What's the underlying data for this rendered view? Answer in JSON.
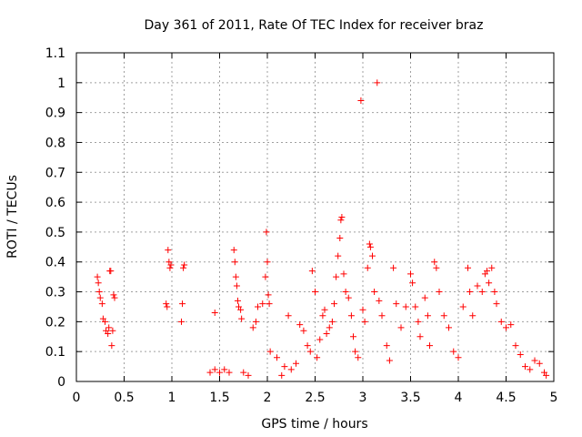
{
  "chart_data": {
    "type": "scatter",
    "title": "Day 361 of 2011, Rate Of TEC Index for receiver braz",
    "xlabel": "GPS time / hours",
    "ylabel": "ROTI / TECUs",
    "xlim": [
      0,
      5
    ],
    "ylim": [
      0,
      1.1
    ],
    "xticks": [
      "0",
      "0.5",
      "1",
      "1.5",
      "2",
      "2.5",
      "3",
      "3.5",
      "4",
      "4.5",
      "5"
    ],
    "yticks": [
      "0",
      "0.1",
      "0.2",
      "0.3",
      "0.4",
      "0.5",
      "0.6",
      "0.7",
      "0.8",
      "0.9",
      "1",
      "1.1"
    ],
    "grid": true,
    "marker": "plus",
    "series": [
      {
        "name": "ROTI",
        "color": "#ff0000",
        "points": [
          [
            0.22,
            0.35
          ],
          [
            0.23,
            0.33
          ],
          [
            0.24,
            0.3
          ],
          [
            0.25,
            0.28
          ],
          [
            0.27,
            0.26
          ],
          [
            0.28,
            0.21
          ],
          [
            0.3,
            0.2
          ],
          [
            0.31,
            0.17
          ],
          [
            0.33,
            0.16
          ],
          [
            0.34,
            0.18
          ],
          [
            0.35,
            0.37
          ],
          [
            0.36,
            0.37
          ],
          [
            0.37,
            0.12
          ],
          [
            0.38,
            0.17
          ],
          [
            0.39,
            0.29
          ],
          [
            0.4,
            0.28
          ],
          [
            0.94,
            0.26
          ],
          [
            0.95,
            0.25
          ],
          [
            0.96,
            0.44
          ],
          [
            0.97,
            0.4
          ],
          [
            0.98,
            0.38
          ],
          [
            0.99,
            0.39
          ],
          [
            1.1,
            0.2
          ],
          [
            1.11,
            0.26
          ],
          [
            1.12,
            0.38
          ],
          [
            1.13,
            0.39
          ],
          [
            1.45,
            0.23
          ],
          [
            1.4,
            0.03
          ],
          [
            1.45,
            0.04
          ],
          [
            1.5,
            0.03
          ],
          [
            1.55,
            0.04
          ],
          [
            1.6,
            0.03
          ],
          [
            1.65,
            0.44
          ],
          [
            1.66,
            0.4
          ],
          [
            1.67,
            0.35
          ],
          [
            1.68,
            0.32
          ],
          [
            1.69,
            0.27
          ],
          [
            1.7,
            0.25
          ],
          [
            1.72,
            0.24
          ],
          [
            1.73,
            0.21
          ],
          [
            1.75,
            0.03
          ],
          [
            1.8,
            0.02
          ],
          [
            1.85,
            0.18
          ],
          [
            1.88,
            0.2
          ],
          [
            1.9,
            0.25
          ],
          [
            1.95,
            0.26
          ],
          [
            1.98,
            0.35
          ],
          [
            1.99,
            0.5
          ],
          [
            2.0,
            0.4
          ],
          [
            2.01,
            0.29
          ],
          [
            2.02,
            0.26
          ],
          [
            2.03,
            0.1
          ],
          [
            2.1,
            0.08
          ],
          [
            2.15,
            0.02
          ],
          [
            2.18,
            0.05
          ],
          [
            2.22,
            0.22
          ],
          [
            2.25,
            0.04
          ],
          [
            2.3,
            0.06
          ],
          [
            2.34,
            0.19
          ],
          [
            2.38,
            0.17
          ],
          [
            2.42,
            0.12
          ],
          [
            2.45,
            0.1
          ],
          [
            2.47,
            0.37
          ],
          [
            2.5,
            0.3
          ],
          [
            2.52,
            0.08
          ],
          [
            2.55,
            0.14
          ],
          [
            2.58,
            0.22
          ],
          [
            2.6,
            0.24
          ],
          [
            2.62,
            0.16
          ],
          [
            2.65,
            0.18
          ],
          [
            2.68,
            0.2
          ],
          [
            2.7,
            0.26
          ],
          [
            2.72,
            0.35
          ],
          [
            2.74,
            0.42
          ],
          [
            2.76,
            0.48
          ],
          [
            2.77,
            0.54
          ],
          [
            2.78,
            0.55
          ],
          [
            2.8,
            0.36
          ],
          [
            2.82,
            0.3
          ],
          [
            2.85,
            0.28
          ],
          [
            2.88,
            0.22
          ],
          [
            2.9,
            0.15
          ],
          [
            2.92,
            0.1
          ],
          [
            2.95,
            0.08
          ],
          [
            2.98,
            0.94
          ],
          [
            3.0,
            0.24
          ],
          [
            3.02,
            0.2
          ],
          [
            3.05,
            0.38
          ],
          [
            3.07,
            0.46
          ],
          [
            3.08,
            0.45
          ],
          [
            3.1,
            0.42
          ],
          [
            3.12,
            0.3
          ],
          [
            3.15,
            1.0
          ],
          [
            3.17,
            0.27
          ],
          [
            3.2,
            0.22
          ],
          [
            3.25,
            0.12
          ],
          [
            3.28,
            0.07
          ],
          [
            3.32,
            0.38
          ],
          [
            3.35,
            0.26
          ],
          [
            3.4,
            0.18
          ],
          [
            3.45,
            0.25
          ],
          [
            3.5,
            0.36
          ],
          [
            3.52,
            0.33
          ],
          [
            3.55,
            0.25
          ],
          [
            3.58,
            0.2
          ],
          [
            3.6,
            0.15
          ],
          [
            3.65,
            0.28
          ],
          [
            3.68,
            0.22
          ],
          [
            3.7,
            0.12
          ],
          [
            3.75,
            0.4
          ],
          [
            3.77,
            0.38
          ],
          [
            3.8,
            0.3
          ],
          [
            3.85,
            0.22
          ],
          [
            3.9,
            0.18
          ],
          [
            3.95,
            0.1
          ],
          [
            4.0,
            0.08
          ],
          [
            4.05,
            0.25
          ],
          [
            4.1,
            0.38
          ],
          [
            4.12,
            0.3
          ],
          [
            4.15,
            0.22
          ],
          [
            4.2,
            0.32
          ],
          [
            4.25,
            0.3
          ],
          [
            4.28,
            0.36
          ],
          [
            4.3,
            0.37
          ],
          [
            4.32,
            0.33
          ],
          [
            4.35,
            0.38
          ],
          [
            4.38,
            0.3
          ],
          [
            4.4,
            0.26
          ],
          [
            4.45,
            0.2
          ],
          [
            4.5,
            0.18
          ],
          [
            4.55,
            0.19
          ],
          [
            4.6,
            0.12
          ],
          [
            4.65,
            0.09
          ],
          [
            4.7,
            0.05
          ],
          [
            4.75,
            0.04
          ],
          [
            4.8,
            0.07
          ],
          [
            4.85,
            0.06
          ],
          [
            4.9,
            0.03
          ],
          [
            4.92,
            0.02
          ]
        ]
      }
    ]
  }
}
